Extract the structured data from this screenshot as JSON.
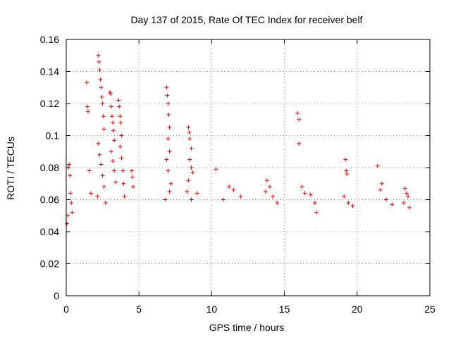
{
  "chart_data": {
    "type": "scatter",
    "title": "Day 137 of 2015, Rate Of TEC Index for receiver belf",
    "xlabel": "GPS time / hours",
    "ylabel": "ROTI / TECUs",
    "xlim": [
      0,
      25
    ],
    "ylim": [
      0,
      0.16
    ],
    "xticks": [
      "0",
      "5",
      "10",
      "15",
      "20",
      "25"
    ],
    "yticks": [
      "0",
      "0.02",
      "0.04",
      "0.06",
      "0.08",
      "0.1",
      "0.12",
      "0.14",
      "0.16"
    ],
    "grid": true,
    "marker": "+",
    "color": "#ff0000",
    "series": [
      {
        "points": [
          [
            0.05,
            0.045
          ],
          [
            0.1,
            0.05
          ],
          [
            0.15,
            0.08
          ],
          [
            0.2,
            0.082
          ],
          [
            0.25,
            0.075
          ],
          [
            0.3,
            0.064
          ],
          [
            0.35,
            0.058
          ],
          [
            0.4,
            0.052
          ],
          [
            1.4,
            0.133
          ],
          [
            1.45,
            0.118
          ],
          [
            1.5,
            0.115
          ],
          [
            1.6,
            0.078
          ],
          [
            1.7,
            0.064
          ],
          [
            2.2,
            0.15
          ],
          [
            2.25,
            0.146
          ],
          [
            2.3,
            0.141
          ],
          [
            2.35,
            0.135
          ],
          [
            2.4,
            0.13
          ],
          [
            2.45,
            0.124
          ],
          [
            2.5,
            0.12
          ],
          [
            2.55,
            0.112
          ],
          [
            2.6,
            0.104
          ],
          [
            2.2,
            0.095
          ],
          [
            2.3,
            0.088
          ],
          [
            2.4,
            0.082
          ],
          [
            2.5,
            0.075
          ],
          [
            2.6,
            0.068
          ],
          [
            2.15,
            0.062
          ],
          [
            2.7,
            0.058
          ],
          [
            3.0,
            0.127
          ],
          [
            3.05,
            0.126
          ],
          [
            3.1,
            0.118
          ],
          [
            3.15,
            0.112
          ],
          [
            3.2,
            0.108
          ],
          [
            3.25,
            0.103
          ],
          [
            3.3,
            0.097
          ],
          [
            3.1,
            0.09
          ],
          [
            3.2,
            0.084
          ],
          [
            3.3,
            0.078
          ],
          [
            3.4,
            0.071
          ],
          [
            3.6,
            0.122
          ],
          [
            3.65,
            0.118
          ],
          [
            3.7,
            0.112
          ],
          [
            3.75,
            0.108
          ],
          [
            3.8,
            0.1
          ],
          [
            3.7,
            0.093
          ],
          [
            3.8,
            0.086
          ],
          [
            3.9,
            0.078
          ],
          [
            3.95,
            0.07
          ],
          [
            4.0,
            0.062
          ],
          [
            4.5,
            0.078
          ],
          [
            4.55,
            0.074
          ],
          [
            4.6,
            0.068
          ],
          [
            6.9,
            0.13
          ],
          [
            6.95,
            0.125
          ],
          [
            7.0,
            0.12
          ],
          [
            7.05,
            0.113
          ],
          [
            7.1,
            0.105
          ],
          [
            7.0,
            0.098
          ],
          [
            7.1,
            0.09
          ],
          [
            6.9,
            0.085
          ],
          [
            7.0,
            0.078
          ],
          [
            7.2,
            0.07
          ],
          [
            7.1,
            0.065
          ],
          [
            6.8,
            0.06
          ],
          [
            8.4,
            0.105
          ],
          [
            8.45,
            0.102
          ],
          [
            8.5,
            0.098
          ],
          [
            8.6,
            0.092
          ],
          [
            8.5,
            0.085
          ],
          [
            8.6,
            0.08
          ],
          [
            8.7,
            0.077
          ],
          [
            8.4,
            0.072
          ],
          [
            8.3,
            0.065
          ],
          [
            8.6,
            0.06
          ],
          [
            9.0,
            0.064
          ],
          [
            10.3,
            0.079
          ],
          [
            10.8,
            0.06
          ],
          [
            11.2,
            0.068
          ],
          [
            11.5,
            0.066
          ],
          [
            12.0,
            0.062
          ],
          [
            13.8,
            0.072
          ],
          [
            14.0,
            0.068
          ],
          [
            13.7,
            0.065
          ],
          [
            14.2,
            0.062
          ],
          [
            14.5,
            0.058
          ],
          [
            15.9,
            0.114
          ],
          [
            16.0,
            0.11
          ],
          [
            16.0,
            0.095
          ],
          [
            16.2,
            0.068
          ],
          [
            16.4,
            0.064
          ],
          [
            16.8,
            0.063
          ],
          [
            17.1,
            0.058
          ],
          [
            17.2,
            0.052
          ],
          [
            19.2,
            0.085
          ],
          [
            19.25,
            0.078
          ],
          [
            19.3,
            0.076
          ],
          [
            19.1,
            0.062
          ],
          [
            19.4,
            0.058
          ],
          [
            19.7,
            0.056
          ],
          [
            21.4,
            0.081
          ],
          [
            21.7,
            0.07
          ],
          [
            21.6,
            0.066
          ],
          [
            22.0,
            0.06
          ],
          [
            22.4,
            0.057
          ],
          [
            23.3,
            0.067
          ],
          [
            23.4,
            0.064
          ],
          [
            23.5,
            0.062
          ],
          [
            23.2,
            0.058
          ],
          [
            23.6,
            0.055
          ]
        ]
      }
    ]
  }
}
